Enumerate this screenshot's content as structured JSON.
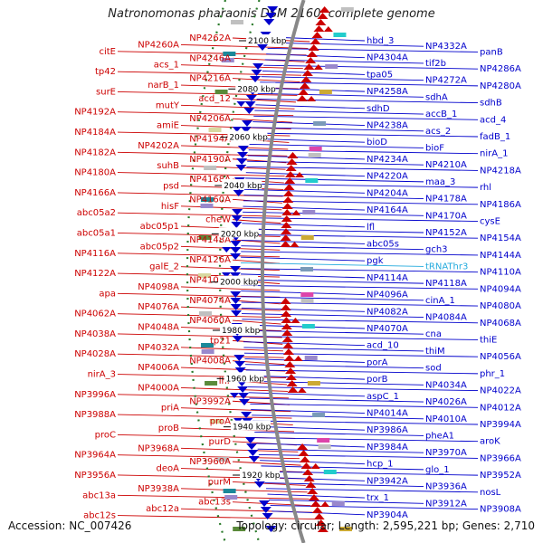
{
  "title": "Natronomonas pharaonis DSM 2160, complete genome",
  "accession": "Accession: NC_007426",
  "summary": "Topology: circular; Length: 2,595,221 bp; Genes: 2,710",
  "colors": {
    "forward_gene": "#cc0000",
    "reverse_gene": "#0000cc",
    "rna_gene": "#22aadd",
    "backbone": "#888888",
    "gc_track": "#2a7a2a"
  },
  "scale_ticks": [
    "2100 kbp",
    "2080 kbp",
    "2060 kbp",
    "2040 kbp",
    "2020 kbp",
    "2000 kbp",
    "1980 kbp",
    "1960 kbp",
    "1940 kbp",
    "1920 kbp"
  ],
  "left_labels": [
    "NP4262A",
    "NP4260A",
    "citE",
    "NP4246A",
    "acs_1",
    "tp42",
    "NP4216A",
    "narB_1",
    "surE",
    "acd_12",
    "mutY",
    "NP4192A",
    "NP4206A",
    "amiE",
    "NP4184A",
    "NP4194A",
    "NP4202A",
    "NP4182A",
    "NP4190A",
    "suhB",
    "NP4180A",
    "NP4168A",
    "psd",
    "NP4166A",
    "NP4160A",
    "hisF",
    "abc05a2",
    "cheW",
    "abc05p1",
    "abc05a1",
    "NP4148A",
    "abc05p2",
    "NP4116A",
    "NP4126A",
    "galE_2",
    "NP4122A",
    "NP4108A",
    "NP4098A",
    "apa",
    "NP4074A",
    "NP4076A",
    "NP4062A",
    "NP4060A",
    "NP4048A",
    "NP4038A",
    "tp21",
    "NP4032A",
    "NP4028A",
    "NP4008A",
    "NP4006A",
    "nirA_3",
    "lhr",
    "NP4000A",
    "NP3996A",
    "NP3992A",
    "priA",
    "NP3988A",
    "proA",
    "proB",
    "proC",
    "purD",
    "NP3968A",
    "NP3964A",
    "NP3960A",
    "deoA",
    "NP3956A",
    "purM",
    "NP3938A",
    "abc13a",
    "abc13s",
    "abc12a",
    "abc12s"
  ],
  "right_labels": [
    "hbd_3",
    "NP4332A",
    "panB",
    "NP4304A",
    "tif2b",
    "NP4286A",
    "tpa05",
    "NP4272A",
    "NP4280A",
    "NP4258A",
    "sdhA",
    "sdhB",
    "sdhD",
    "accB_1",
    "acd_4",
    "NP4238A",
    "acs_2",
    "fadB_1",
    "bioD",
    "bioF",
    "nirA_1",
    "NP4234A",
    "NP4210A",
    "NP4218A",
    "NP4220A",
    "maa_3",
    "rhl",
    "NP4204A",
    "NP4178A",
    "NP4186A",
    "NP4164A",
    "NP4170A",
    "cysE",
    "lfl",
    "NP4152A",
    "NP4154A",
    "abc05s",
    "gch3",
    "NP4144A",
    "pgk",
    "tRNAThr3",
    "NP4110A",
    "NP4114A",
    "NP4118A",
    "NP4094A",
    "NP4096A",
    "cinA_1",
    "NP4080A",
    "NP4082A",
    "NP4084A",
    "NP4068A",
    "NP4070A",
    "cna",
    "thiE",
    "acd_10",
    "thiM",
    "NP4056A",
    "porA",
    "sod",
    "phr_1",
    "porB",
    "NP4034A",
    "NP4022A",
    "aspC_1",
    "NP4026A",
    "NP4012A",
    "NP4014A",
    "NP4010A",
    "NP3994A",
    "NP3986A",
    "pheA1",
    "aroK",
    "NP3984A",
    "NP3970A",
    "NP3966A",
    "hcp_1",
    "glo_1",
    "NP3952A",
    "NP3942A",
    "NP3936A",
    "nosL",
    "trx_1",
    "NP3912A",
    "NP3908A",
    "NP3904A"
  ]
}
